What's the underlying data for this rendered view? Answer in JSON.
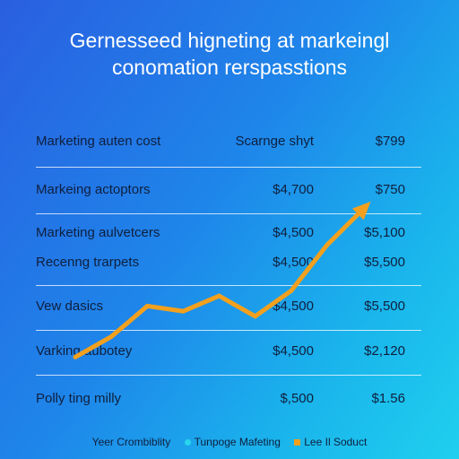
{
  "title_line1": "Gernesseed higneting at markeingl",
  "title_line2": "conomation rerspasstions",
  "colors": {
    "trend_line": "#f2a01e",
    "legend_dot": "#29d6ee",
    "legend_square": "#f2a01e"
  },
  "table": {
    "rows": [
      {
        "label": "Marketing auten cost",
        "col1": "Scarnge shyt",
        "col2": "$799"
      },
      {
        "label": "Markeing actoptors",
        "col1": "$4,700",
        "col2": "$750"
      },
      {
        "label": "Marketing aulvetcers",
        "col1": "$4,500",
        "col2": "$5,100"
      },
      {
        "label": "Recenng trarpets",
        "col1": "$4,500",
        "col2": "$5,500"
      },
      {
        "label": "Vew dasics",
        "col1": "$4,500",
        "col2": "$5,500"
      },
      {
        "label": "Varking aubotey",
        "col1": "$4,500",
        "col2": "$2,120"
      },
      {
        "label": "Polly ting milly",
        "col1": "$,500",
        "col2": "$1.56"
      }
    ]
  },
  "chart_data": {
    "type": "line",
    "title": "Gernesseed higneting at markeingl conomation rerspasstions",
    "series": [
      {
        "values": [
          1,
          5,
          11,
          10,
          13,
          9,
          14,
          23,
          30
        ]
      }
    ],
    "x": [
      0,
      1,
      2,
      3,
      4,
      5,
      6,
      7,
      8
    ],
    "ylim": [
      0,
      32
    ],
    "grid": true,
    "legend_position": "bottom"
  },
  "legend": {
    "items": [
      {
        "label": "Yeer Crombiblity",
        "marker": "none"
      },
      {
        "label": "Tunpoge Mafeting",
        "marker": "dot"
      },
      {
        "label": "Lee Il Soduct",
        "marker": "square"
      }
    ]
  }
}
